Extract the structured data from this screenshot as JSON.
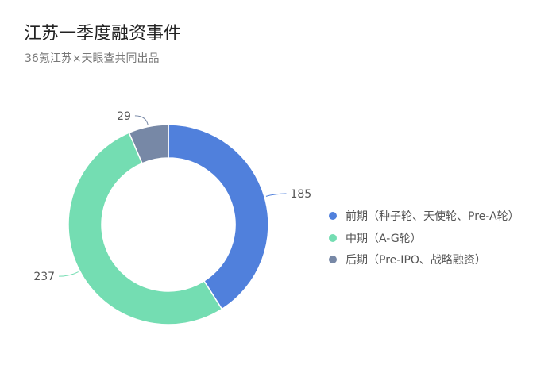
{
  "title": "江苏一季度融资事件",
  "subtitle": "36氪江苏×天眼查共同出品",
  "chart_data": {
    "type": "pie",
    "donut": true,
    "categories": [
      "前期（种子轮、天使轮、Pre-A轮）",
      "中期（A-G轮）",
      "后期（Pre-IPO、战略融资）"
    ],
    "values": [
      185,
      237,
      29
    ],
    "colors": [
      "#5080DC",
      "#74DDB2",
      "#7788A6"
    ],
    "legend_position": "right"
  }
}
